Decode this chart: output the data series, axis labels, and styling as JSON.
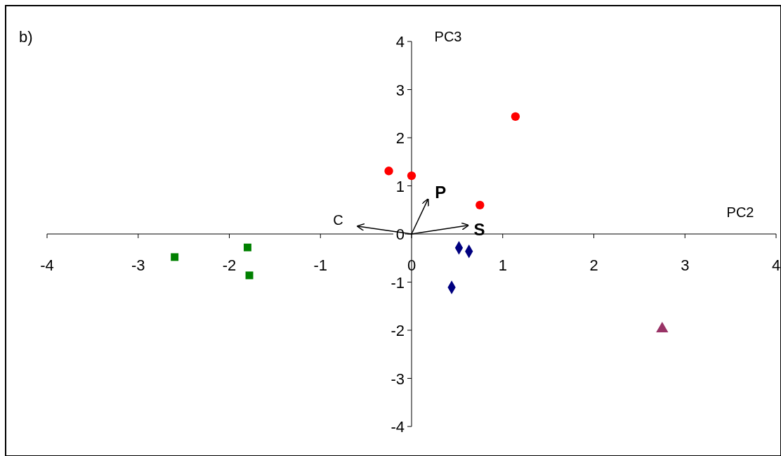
{
  "chart_data": {
    "type": "scatter",
    "title": "b)",
    "xlabel": "PC2",
    "ylabel": "PC3",
    "xlim": [
      -4,
      4
    ],
    "ylim": [
      -4,
      4
    ],
    "xticks": [
      -4,
      -3,
      -2,
      -1,
      0,
      1,
      2,
      3,
      4
    ],
    "yticks": [
      -4,
      -3,
      -2,
      -1,
      0,
      1,
      2,
      3,
      4
    ],
    "grid": false,
    "series": [
      {
        "color": "#ff0000",
        "marker": "circle",
        "x": [
          -0.25,
          0,
          1.14,
          0.75
        ],
        "values": [
          1.31,
          1.21,
          2.44,
          0.6
        ]
      },
      {
        "color": "#008000",
        "marker": "square",
        "x": [
          -2.6,
          -1.8,
          -1.78
        ],
        "values": [
          -0.48,
          -0.28,
          -0.86
        ]
      },
      {
        "color": "#000080",
        "marker": "diamond",
        "x": [
          0.52,
          0.63,
          0.44
        ],
        "values": [
          -0.29,
          -0.36,
          -1.11
        ]
      },
      {
        "color": "#993366",
        "marker": "triangle",
        "x": [
          2.75
        ],
        "values": [
          -1.97
        ]
      },
      {
        "type": "line",
        "name": "P",
        "color": "#000000",
        "x": [
          0,
          0.18
        ],
        "values": [
          0,
          0.72
        ]
      },
      {
        "type": "line",
        "name": "S",
        "color": "#000000",
        "x": [
          0,
          0.62
        ],
        "values": [
          0,
          0.18
        ]
      },
      {
        "type": "line",
        "name": "C",
        "color": "#000000",
        "x": [
          0,
          -0.59
        ],
        "values": [
          0,
          0.16
        ]
      }
    ]
  }
}
